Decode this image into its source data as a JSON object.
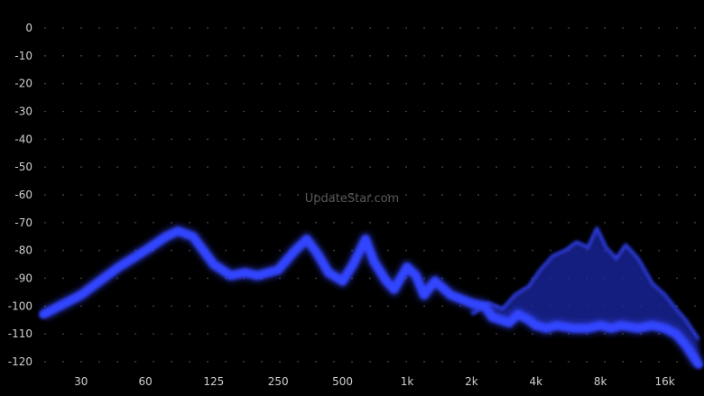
{
  "watermark": "UpdateStar.com",
  "chart_data": {
    "type": "area",
    "title": "",
    "xlabel": "",
    "ylabel": "",
    "x_scale": "log",
    "x_ticks": [
      {
        "label": "30",
        "value": 30
      },
      {
        "label": "60",
        "value": 60
      },
      {
        "label": "125",
        "value": 125
      },
      {
        "label": "250",
        "value": 250
      },
      {
        "label": "500",
        "value": 500
      },
      {
        "label": "1k",
        "value": 1000
      },
      {
        "label": "2k",
        "value": 2000
      },
      {
        "label": "4k",
        "value": 4000
      },
      {
        "label": "8k",
        "value": 8000
      },
      {
        "label": "16k",
        "value": 16000
      }
    ],
    "y_ticks": [
      0,
      -10,
      -20,
      -30,
      -40,
      -50,
      -60,
      -70,
      -80,
      -90,
      -100,
      -110,
      -120
    ],
    "ylim": [
      -127,
      0
    ],
    "xlim": [
      20,
      23000
    ],
    "grid": "dotted",
    "colors": {
      "spectrum": "#3344ff",
      "spectrum_dark": "#1a25a8",
      "background": "#000000"
    },
    "series": [
      {
        "values": [
          [
            20,
            -103
          ],
          [
            30,
            -96
          ],
          [
            45,
            -86
          ],
          [
            60,
            -80
          ],
          [
            75,
            -75
          ],
          [
            85,
            -73
          ],
          [
            100,
            -75
          ],
          [
            125,
            -85
          ],
          [
            150,
            -89
          ],
          [
            175,
            -88
          ],
          [
            200,
            -89
          ],
          [
            250,
            -87
          ],
          [
            300,
            -80
          ],
          [
            340,
            -76
          ],
          [
            380,
            -81
          ],
          [
            430,
            -88
          ],
          [
            500,
            -91
          ],
          [
            560,
            -85
          ],
          [
            640,
            -76
          ],
          [
            700,
            -84
          ],
          [
            800,
            -91
          ],
          [
            870,
            -94
          ],
          [
            1000,
            -86
          ],
          [
            1100,
            -89
          ],
          [
            1200,
            -96
          ],
          [
            1350,
            -91
          ],
          [
            1600,
            -96
          ],
          [
            2000,
            -99
          ],
          [
            2300,
            -100
          ],
          [
            2500,
            -104
          ],
          [
            3000,
            -106
          ],
          [
            3300,
            -103
          ],
          [
            3700,
            -105
          ],
          [
            4000,
            -107
          ],
          [
            4500,
            -108
          ],
          [
            5000,
            -107
          ],
          [
            6000,
            -108
          ],
          [
            7000,
            -108
          ],
          [
            8000,
            -107
          ],
          [
            9000,
            -108
          ],
          [
            10000,
            -107
          ],
          [
            12000,
            -108
          ],
          [
            14000,
            -107
          ],
          [
            16000,
            -108
          ],
          [
            18000,
            -110
          ],
          [
            20000,
            -114
          ],
          [
            23000,
            -121
          ]
        ]
      },
      {
        "values": [
          [
            2000,
            -103
          ],
          [
            2400,
            -99
          ],
          [
            2800,
            -101
          ],
          [
            3200,
            -96
          ],
          [
            3700,
            -93
          ],
          [
            4200,
            -87
          ],
          [
            4800,
            -82
          ],
          [
            5500,
            -80
          ],
          [
            6200,
            -77
          ],
          [
            7000,
            -79
          ],
          [
            7700,
            -72
          ],
          [
            8500,
            -79
          ],
          [
            9500,
            -83
          ],
          [
            10500,
            -78
          ],
          [
            12000,
            -83
          ],
          [
            14000,
            -92
          ],
          [
            16000,
            -96
          ],
          [
            18000,
            -101
          ],
          [
            20000,
            -105
          ],
          [
            23000,
            -112
          ]
        ]
      }
    ]
  }
}
